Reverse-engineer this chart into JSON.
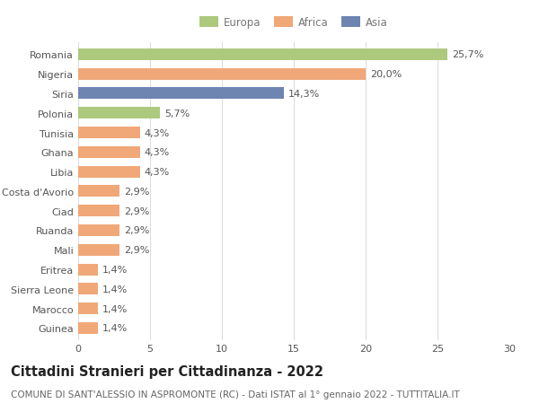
{
  "categories": [
    "Romania",
    "Nigeria",
    "Siria",
    "Polonia",
    "Tunisia",
    "Ghana",
    "Libia",
    "Costa d'Avorio",
    "Ciad",
    "Ruanda",
    "Mali",
    "Eritrea",
    "Sierra Leone",
    "Marocco",
    "Guinea"
  ],
  "values": [
    25.7,
    20.0,
    14.3,
    5.7,
    4.3,
    4.3,
    4.3,
    2.9,
    2.9,
    2.9,
    2.9,
    1.4,
    1.4,
    1.4,
    1.4
  ],
  "labels": [
    "25,7%",
    "20,0%",
    "14,3%",
    "5,7%",
    "4,3%",
    "4,3%",
    "4,3%",
    "2,9%",
    "2,9%",
    "2,9%",
    "2,9%",
    "1,4%",
    "1,4%",
    "1,4%",
    "1,4%"
  ],
  "colors": [
    "#adc97e",
    "#f0a878",
    "#6e85b2",
    "#adc97e",
    "#f0a878",
    "#f0a878",
    "#f0a878",
    "#f0a878",
    "#f0a878",
    "#f0a878",
    "#f0a878",
    "#f0a878",
    "#f0a878",
    "#f0a878",
    "#f0a878"
  ],
  "legend_labels": [
    "Europa",
    "Africa",
    "Asia"
  ],
  "legend_colors": [
    "#adc97e",
    "#f0a878",
    "#6e85b2"
  ],
  "title": "Cittadini Stranieri per Cittadinanza - 2022",
  "subtitle": "COMUNE DI SANT'ALESSIO IN ASPROMONTE (RC) - Dati ISTAT al 1° gennaio 2022 - TUTTITALIA.IT",
  "xlim": [
    0,
    30
  ],
  "xticks": [
    0,
    5,
    10,
    15,
    20,
    25,
    30
  ],
  "background_color": "#ffffff",
  "bar_height": 0.6,
  "grid_color": "#dddddd",
  "label_fontsize": 8.0,
  "tick_fontsize": 8.0,
  "title_fontsize": 10.5,
  "subtitle_fontsize": 7.5
}
